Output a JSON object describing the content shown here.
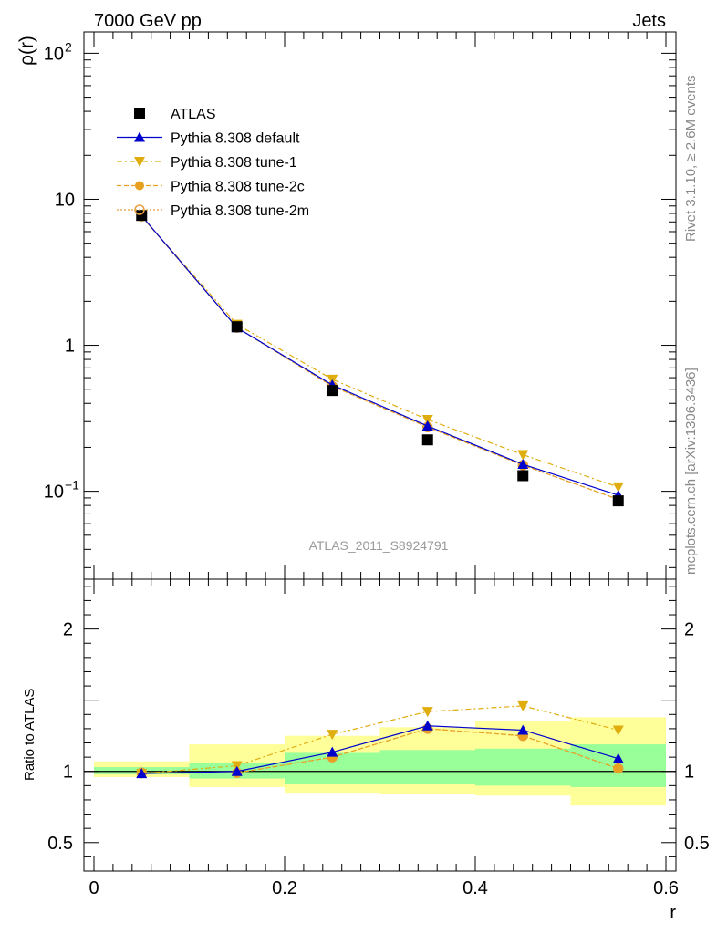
{
  "header": {
    "left": "7000 GeV pp",
    "right": "Jets"
  },
  "side_labels": {
    "rivet": "Rivet 3.1.10, ≥ 2.6M events",
    "mcplots": "mcplots.cern.ch [arXiv:1306.3436]"
  },
  "analysis_id": "ATLAS_2011_S8924791",
  "colors": {
    "data": "#000000",
    "default": "#0000cc",
    "tune1": "#e0ad0f",
    "tune2c": "#e8a020",
    "tune2m": "#e6a040",
    "band_inner": "#99ff99",
    "band_outer": "#ffff99"
  },
  "chart_data": [
    {
      "type": "line",
      "ylabel": "ρ(r)",
      "yscale": "log",
      "ylim": [
        0.025,
        140
      ],
      "xlim": [
        -0.01,
        0.6
      ],
      "y_ticks": [
        {
          "value": 0.1,
          "label": "10",
          "exp": "−1"
        },
        {
          "value": 1,
          "label": "1",
          "exp": ""
        },
        {
          "value": 10,
          "label": "10",
          "exp": ""
        },
        {
          "value": 100,
          "label": "10",
          "exp": "2"
        }
      ],
      "legend": [
        "ATLAS",
        "Pythia 8.308 default",
        "Pythia 8.308 tune-1",
        "Pythia 8.308 tune-2c",
        "Pythia 8.308 tune-2m"
      ],
      "legend_position": "top-left",
      "x": [
        0.05,
        0.15,
        0.25,
        0.35,
        0.45,
        0.55
      ],
      "x_bins": [
        [
          0.0,
          0.1
        ],
        [
          0.1,
          0.2
        ],
        [
          0.2,
          0.3
        ],
        [
          0.3,
          0.4
        ],
        [
          0.4,
          0.5
        ],
        [
          0.5,
          0.6
        ]
      ],
      "series": [
        {
          "name": "ATLAS",
          "values": [
            7.75,
            1.34,
            0.49,
            0.225,
            0.128,
            0.086
          ]
        },
        {
          "name": "Pythia 8.308 default",
          "values": [
            7.7,
            1.32,
            0.535,
            0.28,
            0.153,
            0.094
          ]
        },
        {
          "name": "Pythia 8.308 tune-1",
          "values": [
            7.6,
            1.39,
            0.585,
            0.31,
            0.178,
            0.107
          ]
        },
        {
          "name": "Pythia 8.308 tune-2c",
          "values": [
            7.65,
            1.32,
            0.525,
            0.275,
            0.151,
            0.088
          ]
        },
        {
          "name": "Pythia 8.308 tune-2m",
          "values": [
            7.65,
            1.32,
            0.525,
            0.275,
            0.151,
            0.088
          ]
        }
      ]
    },
    {
      "type": "line",
      "xlabel": "r",
      "ylabel": "Ratio to ATLAS",
      "ylim": [
        0.3,
        2.35
      ],
      "xlim": [
        -0.01,
        0.6
      ],
      "x_ticks": [
        "0",
        "0.2",
        "0.4",
        "0.6"
      ],
      "y_ticks": [
        "0.5",
        "1",
        "2"
      ],
      "x": [
        0.05,
        0.15,
        0.25,
        0.35,
        0.45,
        0.55
      ],
      "band_inner": [
        [
          0.98,
          1.03
        ],
        [
          0.95,
          1.06
        ],
        [
          0.91,
          1.13
        ],
        [
          0.91,
          1.15
        ],
        [
          0.9,
          1.16
        ],
        [
          0.89,
          1.19
        ]
      ],
      "band_outer": [
        [
          0.96,
          1.07
        ],
        [
          0.89,
          1.19
        ],
        [
          0.85,
          1.25
        ],
        [
          0.84,
          1.31
        ],
        [
          0.83,
          1.35
        ],
        [
          0.76,
          1.38
        ]
      ],
      "series": [
        {
          "name": "Pythia 8.308 default",
          "values": [
            0.985,
            1.0,
            1.135,
            1.32,
            1.29,
            1.09
          ]
        },
        {
          "name": "Pythia 8.308 tune-1",
          "values": [
            0.985,
            1.04,
            1.26,
            1.42,
            1.46,
            1.29
          ]
        },
        {
          "name": "Pythia 8.308 tune-2c",
          "values": [
            0.99,
            0.99,
            1.1,
            1.3,
            1.25,
            1.02
          ]
        },
        {
          "name": "Pythia 8.308 tune-2m",
          "values": [
            0.99,
            0.99,
            1.1,
            1.3,
            1.25,
            1.02
          ]
        }
      ]
    }
  ]
}
